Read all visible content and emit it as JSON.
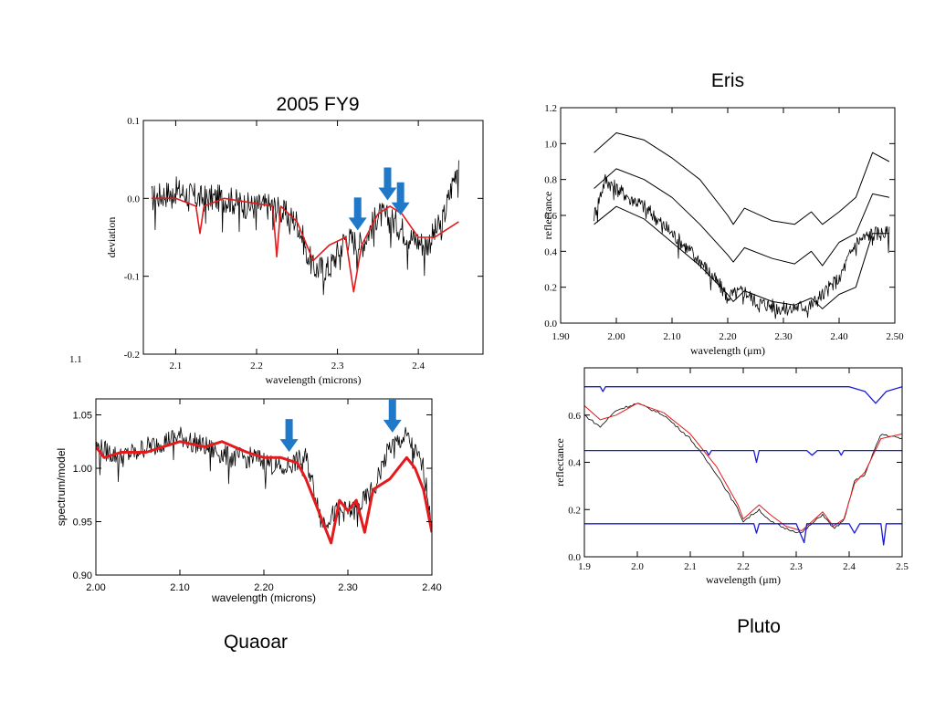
{
  "captions": {
    "fy9": "2005 FY9",
    "eris": "Eris",
    "quaoar": "Quaoar",
    "pluto": "Pluto"
  },
  "stray_label": "1.1",
  "colors": {
    "data": "#000000",
    "model": "#e41a1c",
    "arrow": "#1f78c8",
    "ref": "#1a1ad8"
  },
  "chart_data": [
    {
      "id": "fy9",
      "type": "line",
      "title": "2005 FY9",
      "xlabel": "wavelength (microns)",
      "ylabel": "deviation",
      "xlim": [
        2.06,
        2.48
      ],
      "ylim": [
        -0.2,
        0.1
      ],
      "xticks": [
        "2.1",
        "2.2",
        "2.3",
        "2.4"
      ],
      "yticks": [
        "0.1",
        "0.0",
        "-0.1",
        "-0.2"
      ],
      "arrows_at": [
        2.325,
        2.362,
        2.378
      ],
      "series": [
        {
          "role": "data",
          "x": [
            2.07,
            2.1,
            2.13,
            2.16,
            2.19,
            2.22,
            2.25,
            2.27,
            2.29,
            2.31,
            2.33,
            2.35,
            2.37,
            2.39,
            2.41,
            2.43,
            2.45
          ],
          "y": [
            0.0,
            0.01,
            0.0,
            0.0,
            -0.01,
            -0.01,
            -0.03,
            -0.09,
            -0.09,
            -0.05,
            -0.06,
            -0.02,
            -0.03,
            -0.05,
            -0.06,
            -0.03,
            0.05
          ]
        },
        {
          "role": "model",
          "x": [
            2.07,
            2.1,
            2.125,
            2.13,
            2.135,
            2.16,
            2.19,
            2.22,
            2.225,
            2.23,
            2.25,
            2.27,
            2.29,
            2.31,
            2.32,
            2.33,
            2.35,
            2.365,
            2.38,
            2.4,
            2.42,
            2.45
          ],
          "y": [
            0.0,
            0.0,
            -0.01,
            -0.045,
            -0.01,
            0.0,
            -0.005,
            -0.01,
            -0.075,
            -0.01,
            -0.03,
            -0.08,
            -0.06,
            -0.05,
            -0.12,
            -0.06,
            -0.02,
            -0.01,
            -0.02,
            -0.05,
            -0.05,
            -0.03
          ]
        }
      ]
    },
    {
      "id": "eris",
      "type": "line",
      "title": "Eris",
      "xlabel": "wavelength (μm)",
      "ylabel": "reflectance",
      "xlim": [
        1.9,
        2.5
      ],
      "ylim": [
        0.0,
        1.2
      ],
      "xticks": [
        "1.90",
        "2.00",
        "2.10",
        "2.20",
        "2.30",
        "2.40",
        "2.50"
      ],
      "yticks": [
        "0.0",
        "0.2",
        "0.4",
        "0.6",
        "0.8",
        "1.0",
        "1.2"
      ],
      "series": [
        {
          "role": "data",
          "x": [
            1.96,
            1.98,
            2.0,
            2.05,
            2.1,
            2.15,
            2.2,
            2.23,
            2.25,
            2.3,
            2.35,
            2.4,
            2.43,
            2.46,
            2.49
          ],
          "y": [
            0.6,
            0.8,
            0.75,
            0.65,
            0.5,
            0.35,
            0.15,
            0.18,
            0.12,
            0.08,
            0.1,
            0.25,
            0.45,
            0.5,
            0.5
          ]
        },
        {
          "role": "model",
          "x": [
            1.96,
            2.0,
            2.05,
            2.1,
            2.15,
            2.2,
            2.21,
            2.23,
            2.28,
            2.32,
            2.35,
            2.37,
            2.4,
            2.43,
            2.46,
            2.49
          ],
          "y": [
            0.95,
            1.06,
            1.02,
            0.92,
            0.8,
            0.6,
            0.55,
            0.64,
            0.57,
            0.55,
            0.62,
            0.55,
            0.62,
            0.7,
            0.95,
            0.9
          ]
        },
        {
          "role": "model",
          "x": [
            1.96,
            2.0,
            2.05,
            2.1,
            2.15,
            2.2,
            2.21,
            2.23,
            2.28,
            2.32,
            2.35,
            2.37,
            2.4,
            2.43,
            2.46,
            2.49
          ],
          "y": [
            0.75,
            0.86,
            0.8,
            0.7,
            0.55,
            0.38,
            0.34,
            0.42,
            0.36,
            0.33,
            0.4,
            0.32,
            0.45,
            0.5,
            0.72,
            0.7
          ]
        },
        {
          "role": "model",
          "x": [
            1.96,
            2.0,
            2.05,
            2.1,
            2.15,
            2.2,
            2.21,
            2.23,
            2.28,
            2.32,
            2.35,
            2.37,
            2.4,
            2.43,
            2.46,
            2.49
          ],
          "y": [
            0.55,
            0.65,
            0.58,
            0.45,
            0.32,
            0.16,
            0.12,
            0.18,
            0.12,
            0.1,
            0.14,
            0.08,
            0.16,
            0.2,
            0.5,
            0.5
          ]
        }
      ]
    },
    {
      "id": "quaoar",
      "type": "line",
      "title": "Quaoar",
      "xlabel": "wavelength (microns)",
      "ylabel": "spectrum/model",
      "xlim": [
        2.0,
        2.4
      ],
      "ylim": [
        0.9,
        1.065
      ],
      "xticks": [
        "2.00",
        "2.10",
        "2.20",
        "2.30",
        "2.40"
      ],
      "yticks": [
        "1.05",
        "1.00",
        "0.95",
        "0.90"
      ],
      "arrows_at": [
        2.23,
        2.353
      ],
      "series": [
        {
          "role": "data",
          "x": [
            2.0,
            2.03,
            2.06,
            2.1,
            2.13,
            2.16,
            2.19,
            2.22,
            2.25,
            2.27,
            2.29,
            2.31,
            2.33,
            2.35,
            2.37,
            2.39,
            2.4
          ],
          "y": [
            1.02,
            1.01,
            1.02,
            1.03,
            1.02,
            1.01,
            1.01,
            1.0,
            1.01,
            0.95,
            0.96,
            0.96,
            0.98,
            1.02,
            1.03,
            1.0,
            0.95
          ]
        },
        {
          "role": "model",
          "x": [
            2.0,
            2.01,
            2.03,
            2.06,
            2.08,
            2.1,
            2.13,
            2.15,
            2.18,
            2.2,
            2.22,
            2.24,
            2.25,
            2.26,
            2.27,
            2.28,
            2.29,
            2.3,
            2.31,
            2.32,
            2.33,
            2.35,
            2.37,
            2.38,
            2.39,
            2.4
          ],
          "y": [
            1.02,
            1.01,
            1.015,
            1.015,
            1.02,
            1.025,
            1.02,
            1.025,
            1.015,
            1.01,
            1.01,
            1.005,
            0.99,
            0.97,
            0.95,
            0.93,
            0.97,
            0.96,
            0.97,
            0.94,
            0.98,
            0.99,
            1.01,
            1.0,
            0.98,
            0.94
          ]
        }
      ]
    },
    {
      "id": "pluto",
      "type": "line",
      "title": "Pluto",
      "xlabel": "wavelength (μm)",
      "ylabel": "reflectance",
      "xlim": [
        1.9,
        2.5
      ],
      "ylim": [
        0.0,
        0.8
      ],
      "xticks": [
        "1.9",
        "2.0",
        "2.1",
        "2.2",
        "2.3",
        "2.4",
        "2.5"
      ],
      "yticks": [
        "0.0",
        "0.2",
        "0.4",
        "0.6"
      ],
      "series": [
        {
          "role": "data",
          "x": [
            1.9,
            1.93,
            1.96,
            2.0,
            2.05,
            2.1,
            2.15,
            2.19,
            2.2,
            2.23,
            2.25,
            2.28,
            2.31,
            2.33,
            2.35,
            2.37,
            2.39,
            2.41,
            2.43,
            2.46,
            2.5
          ],
          "y": [
            0.6,
            0.55,
            0.62,
            0.65,
            0.6,
            0.5,
            0.35,
            0.2,
            0.15,
            0.2,
            0.15,
            0.12,
            0.1,
            0.14,
            0.18,
            0.12,
            0.15,
            0.32,
            0.35,
            0.52,
            0.5
          ]
        },
        {
          "role": "model",
          "x": [
            1.9,
            1.93,
            1.96,
            2.0,
            2.05,
            2.1,
            2.15,
            2.19,
            2.2,
            2.23,
            2.25,
            2.28,
            2.31,
            2.33,
            2.35,
            2.37,
            2.39,
            2.41,
            2.43,
            2.46,
            2.5
          ],
          "y": [
            0.64,
            0.58,
            0.6,
            0.65,
            0.61,
            0.52,
            0.38,
            0.22,
            0.16,
            0.22,
            0.18,
            0.13,
            0.11,
            0.15,
            0.19,
            0.13,
            0.16,
            0.31,
            0.36,
            0.5,
            0.52
          ]
        },
        {
          "role": "reference",
          "x": [
            1.9,
            1.93,
            1.935,
            1.94,
            2.0,
            2.1,
            2.2,
            2.3,
            2.4,
            2.43,
            2.45,
            2.47,
            2.5
          ],
          "y": [
            0.72,
            0.72,
            0.7,
            0.72,
            0.72,
            0.72,
            0.72,
            0.72,
            0.72,
            0.7,
            0.65,
            0.7,
            0.72
          ]
        },
        {
          "role": "reference",
          "x": [
            1.9,
            2.0,
            2.13,
            2.135,
            2.14,
            2.22,
            2.225,
            2.23,
            2.32,
            2.33,
            2.34,
            2.38,
            2.385,
            2.39,
            2.5
          ],
          "y": [
            0.45,
            0.45,
            0.45,
            0.43,
            0.45,
            0.45,
            0.4,
            0.45,
            0.45,
            0.43,
            0.45,
            0.45,
            0.43,
            0.45,
            0.45
          ]
        },
        {
          "role": "reference",
          "x": [
            1.9,
            2.0,
            2.2,
            2.22,
            2.225,
            2.23,
            2.3,
            2.315,
            2.32,
            2.33,
            2.4,
            2.41,
            2.42,
            2.46,
            2.465,
            2.47,
            2.5
          ],
          "y": [
            0.14,
            0.14,
            0.14,
            0.14,
            0.1,
            0.14,
            0.14,
            0.06,
            0.14,
            0.14,
            0.14,
            0.1,
            0.14,
            0.14,
            0.05,
            0.14,
            0.14
          ]
        }
      ]
    }
  ]
}
